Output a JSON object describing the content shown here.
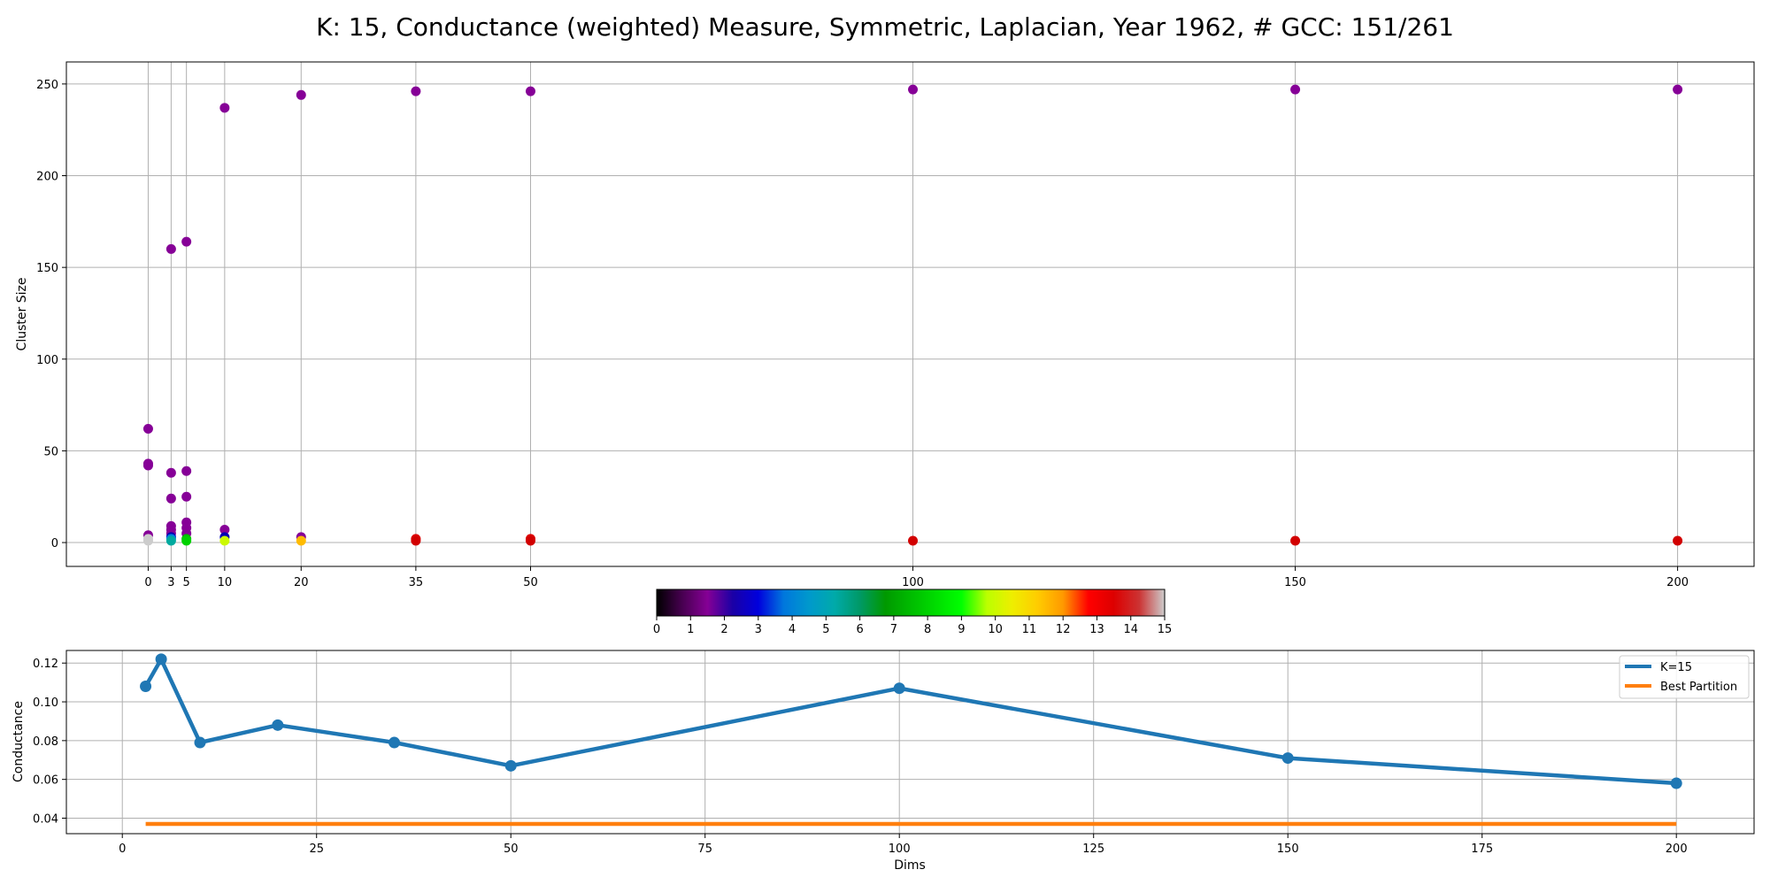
{
  "title": "K: 15, Conductance (weighted) Measure, Symmetric, Laplacian, Year 1962, # GCC: 151/261",
  "colors": {
    "grid": "#b0b0b0",
    "line_series": "#1f77b4",
    "best_partition": "#ff7f0e"
  },
  "chart_data": [
    {
      "type": "scatter",
      "ylabel": "Cluster Size",
      "xlabel": "",
      "x_ticks": [
        0,
        3,
        5,
        10,
        20,
        35,
        50,
        100,
        150,
        200
      ],
      "y_ticks": [
        0,
        50,
        100,
        150,
        200,
        250
      ],
      "xlim": [
        -10.7,
        210
      ],
      "ylim": [
        -13,
        262
      ],
      "grid": "vertical lines at each dims value, horizontal lines at y ticks",
      "color_scale": "nipy_spectral, cluster index 0-15",
      "points": [
        {
          "x": 0,
          "y": 62,
          "c": 1.4
        },
        {
          "x": 0,
          "y": 43,
          "c": 1.4
        },
        {
          "x": 0,
          "y": 42,
          "c": 1.4
        },
        {
          "x": 0,
          "y": 4,
          "c": 1.4
        },
        {
          "x": 0,
          "y": 2,
          "c": 15
        },
        {
          "x": 0,
          "y": 1,
          "c": 15
        },
        {
          "x": 3,
          "y": 160,
          "c": 1.4
        },
        {
          "x": 3,
          "y": 38,
          "c": 1.4
        },
        {
          "x": 3,
          "y": 24,
          "c": 1.4
        },
        {
          "x": 3,
          "y": 9,
          "c": 1.4
        },
        {
          "x": 3,
          "y": 7,
          "c": 1.4
        },
        {
          "x": 3,
          "y": 5,
          "c": 1.4
        },
        {
          "x": 3,
          "y": 3,
          "c": 2.4
        },
        {
          "x": 3,
          "y": 2,
          "c": 4
        },
        {
          "x": 3,
          "y": 1,
          "c": 5.5
        },
        {
          "x": 5,
          "y": 164,
          "c": 1.4
        },
        {
          "x": 5,
          "y": 39,
          "c": 1.4
        },
        {
          "x": 5,
          "y": 25,
          "c": 1.4
        },
        {
          "x": 5,
          "y": 11,
          "c": 1.4
        },
        {
          "x": 5,
          "y": 8,
          "c": 1.4
        },
        {
          "x": 5,
          "y": 5,
          "c": 1.4
        },
        {
          "x": 5,
          "y": 2,
          "c": 7.5
        },
        {
          "x": 5,
          "y": 1,
          "c": 8
        },
        {
          "x": 10,
          "y": 237,
          "c": 1.4
        },
        {
          "x": 10,
          "y": 7,
          "c": 1.4
        },
        {
          "x": 10,
          "y": 3,
          "c": 2.4
        },
        {
          "x": 10,
          "y": 1,
          "c": 10
        },
        {
          "x": 20,
          "y": 244,
          "c": 1.4
        },
        {
          "x": 20,
          "y": 3,
          "c": 1.4
        },
        {
          "x": 20,
          "y": 1,
          "c": 11.5
        },
        {
          "x": 35,
          "y": 246,
          "c": 1.4
        },
        {
          "x": 35,
          "y": 2,
          "c": 13.5
        },
        {
          "x": 35,
          "y": 1,
          "c": 14
        },
        {
          "x": 50,
          "y": 246,
          "c": 1.4
        },
        {
          "x": 50,
          "y": 2,
          "c": 13.5
        },
        {
          "x": 50,
          "y": 1,
          "c": 14
        },
        {
          "x": 100,
          "y": 247,
          "c": 1.4
        },
        {
          "x": 100,
          "y": 1,
          "c": 14
        },
        {
          "x": 150,
          "y": 247,
          "c": 1.4
        },
        {
          "x": 150,
          "y": 1,
          "c": 14
        },
        {
          "x": 200,
          "y": 247,
          "c": 1.4
        },
        {
          "x": 200,
          "y": 1,
          "c": 14
        }
      ]
    },
    {
      "type": "colorbar",
      "range": [
        0,
        15
      ],
      "ticks": [
        0,
        1,
        2,
        3,
        4,
        5,
        6,
        7,
        8,
        9,
        10,
        11,
        12,
        13,
        14,
        15
      ],
      "colormap": "nipy_spectral"
    },
    {
      "type": "line",
      "xlabel": "Dims",
      "ylabel": "Conductance",
      "x_ticks": [
        0,
        25,
        50,
        75,
        100,
        125,
        150,
        175,
        200
      ],
      "y_ticks": [
        0.04,
        0.06,
        0.08,
        0.1,
        0.12
      ],
      "y_tick_labels": [
        "0.04",
        "0.06",
        "0.08",
        "0.10",
        "0.12"
      ],
      "xlim": [
        -7.2,
        210
      ],
      "ylim": [
        0.032,
        0.1265
      ],
      "grid": true,
      "legend_position": "top-right",
      "series": [
        {
          "name": "K=15",
          "color": "#1f77b4",
          "markers": true,
          "x": [
            3,
            5,
            10,
            20,
            35,
            50,
            100,
            150,
            200
          ],
          "y": [
            0.108,
            0.122,
            0.079,
            0.088,
            0.079,
            0.067,
            0.107,
            0.071,
            0.058
          ]
        },
        {
          "name": "Best Partition",
          "color": "#ff7f0e",
          "markers": false,
          "x": [
            3,
            200
          ],
          "y": [
            0.037,
            0.037
          ]
        }
      ]
    }
  ]
}
